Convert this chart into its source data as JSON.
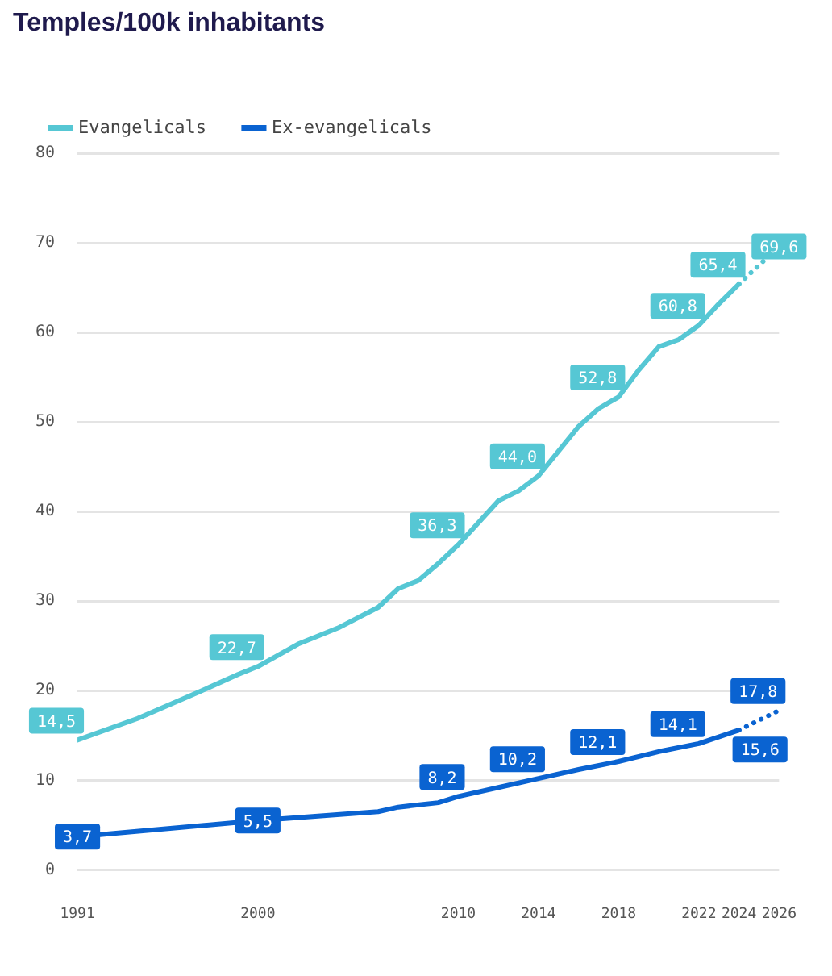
{
  "chart_data": {
    "type": "line",
    "title": "Temples/100k inhabitants",
    "xlim": [
      1991,
      2026
    ],
    "xticks": [
      1991,
      2000,
      2010,
      2014,
      2018,
      2022,
      2024,
      2026
    ],
    "ylim": [
      0,
      80
    ],
    "yticks": [
      0,
      10,
      20,
      30,
      40,
      50,
      60,
      70,
      80
    ],
    "grid": "y",
    "legend": "top left",
    "series": [
      {
        "name": "Evangelicals",
        "color": "#56c7d4",
        "line_style": "solid",
        "x": [
          1991,
          1994,
          1997,
          1999,
          2000,
          2002,
          2004,
          2006,
          2007,
          2008,
          2009,
          2010,
          2012,
          2013,
          2014,
          2016,
          2017,
          2018,
          2019,
          2020,
          2021,
          2022,
          2023,
          2024
        ],
        "values": [
          14.5,
          16.9,
          19.8,
          21.8,
          22.7,
          25.2,
          27.0,
          29.3,
          31.4,
          32.3,
          34.2,
          36.3,
          41.2,
          42.3,
          44.0,
          49.5,
          51.5,
          52.8,
          55.8,
          58.4,
          59.2,
          60.8,
          63.2,
          65.4
        ],
        "value_labels": [
          "14,5",
          null,
          null,
          null,
          "22,7",
          null,
          null,
          null,
          null,
          null,
          null,
          "36,3",
          null,
          null,
          "44,0",
          null,
          null,
          "52,8",
          null,
          null,
          null,
          "60,8",
          null,
          "65,4"
        ]
      },
      {
        "name": "Ex-evangelicals",
        "color": "#0a63d1",
        "line_style": "solid",
        "x": [
          1991,
          2000,
          2003,
          2006,
          2007,
          2009,
          2010,
          2012,
          2014,
          2016,
          2018,
          2020,
          2022,
          2024
        ],
        "values": [
          3.7,
          5.5,
          6.0,
          6.5,
          7.0,
          7.5,
          8.2,
          9.2,
          10.2,
          11.2,
          12.1,
          13.2,
          14.1,
          15.6
        ],
        "value_labels": [
          "3,7",
          "5,5",
          null,
          null,
          null,
          null,
          "8,2",
          null,
          "10,2",
          null,
          "12,1",
          null,
          "14,1",
          "15,6"
        ]
      },
      {
        "color": "#56c7d4",
        "line_style": "dotted",
        "x": [
          2024,
          2026
        ],
        "values": [
          65.4,
          69.6
        ],
        "value_labels": [
          null,
          "69,6"
        ]
      },
      {
        "color": "#0a63d1",
        "line_style": "dotted",
        "x": [
          2024,
          2026
        ],
        "values": [
          15.6,
          17.8
        ],
        "value_labels": [
          null,
          "17,8"
        ]
      }
    ]
  }
}
